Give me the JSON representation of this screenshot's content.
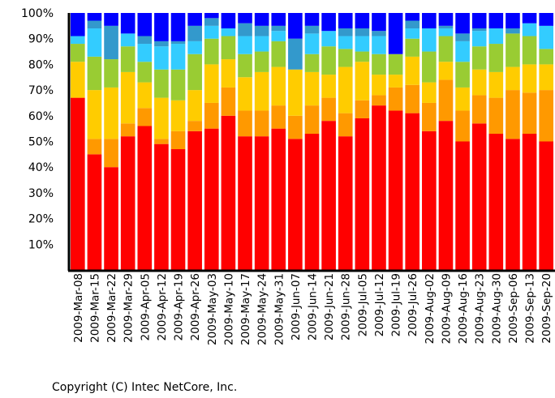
{
  "chart_data": {
    "type": "bar",
    "stacked": true,
    "normalized_percent": true,
    "ylim": [
      0,
      100
    ],
    "y_ticks": [
      "10%",
      "20%",
      "30%",
      "40%",
      "50%",
      "60%",
      "70%",
      "80%",
      "90%",
      "100%"
    ],
    "grid": false,
    "categories": [
      "2009-Mar-08",
      "2009-Mar-15",
      "2009-Mar-22",
      "2009-Mar-29",
      "2009-Apr-05",
      "2009-Apr-12",
      "2009-Apr-19",
      "2009-Apr-26",
      "2009-May-03",
      "2009-May-10",
      "2009-May-17",
      "2009-May-24",
      "2009-May-31",
      "2009-Jun-07",
      "2009-Jun-14",
      "2009-Jun-21",
      "2009-Jun-28",
      "2009-Jul-05",
      "2009-Jul-12",
      "2009-Jul-19",
      "2009-Jul-26",
      "2009-Aug-02",
      "2009-Aug-09",
      "2009-Aug-16",
      "2009-Aug-23",
      "2009-Aug-30",
      "2009-Sep-06",
      "2009-Sep-13",
      "2009-Sep-20"
    ],
    "series": [
      {
        "color": "#ff0000",
        "values": [
          67,
          45,
          40,
          52,
          56,
          49,
          47,
          54,
          55,
          60,
          52,
          52,
          55,
          51,
          53,
          58,
          52,
          59,
          64,
          62,
          61,
          54,
          58,
          50,
          57,
          53,
          51,
          53,
          50
        ]
      },
      {
        "color": "#ff9900",
        "values": [
          0,
          6,
          11,
          5,
          7,
          2,
          7,
          4,
          10,
          11,
          10,
          10,
          9,
          9,
          11,
          9,
          9,
          7,
          4,
          9,
          11,
          11,
          16,
          12,
          11,
          14,
          19,
          16,
          20
        ]
      },
      {
        "color": "#ffcc00",
        "values": [
          14,
          19,
          20,
          20,
          10,
          16,
          12,
          12,
          15,
          11,
          13,
          15,
          15,
          18,
          13,
          9,
          18,
          15,
          8,
          5,
          11,
          8,
          7,
          9,
          10,
          10,
          9,
          11,
          10
        ]
      },
      {
        "color": "#99cc33",
        "values": [
          7,
          13,
          11,
          10,
          8,
          11,
          12,
          14,
          10,
          9,
          9,
          8,
          10,
          0,
          7,
          11,
          7,
          4,
          8,
          8,
          7,
          12,
          10,
          10,
          9,
          11,
          13,
          11,
          6
        ]
      },
      {
        "color": "#33ccff",
        "values": [
          3,
          11,
          0,
          5,
          7,
          9,
          10,
          5,
          5,
          3,
          7,
          6,
          4,
          0,
          8,
          6,
          5,
          6,
          7,
          0,
          4,
          9,
          3,
          8,
          6,
          6,
          0,
          5,
          9
        ]
      },
      {
        "color": "#3399cc",
        "values": [
          0,
          3,
          13,
          0,
          3,
          2,
          1,
          6,
          3,
          0,
          5,
          4,
          2,
          12,
          3,
          0,
          3,
          3,
          2,
          0,
          3,
          0,
          1,
          3,
          1,
          0,
          2,
          0,
          0
        ]
      },
      {
        "color": "#0000ff",
        "values": [
          9,
          3,
          5,
          8,
          9,
          11,
          11,
          5,
          2,
          6,
          4,
          5,
          5,
          10,
          5,
          7,
          6,
          6,
          7,
          16,
          3,
          6,
          5,
          8,
          6,
          6,
          6,
          4,
          5
        ]
      }
    ]
  },
  "footer": {
    "copyright": "Copyright (C) Intec NetCore, Inc."
  }
}
